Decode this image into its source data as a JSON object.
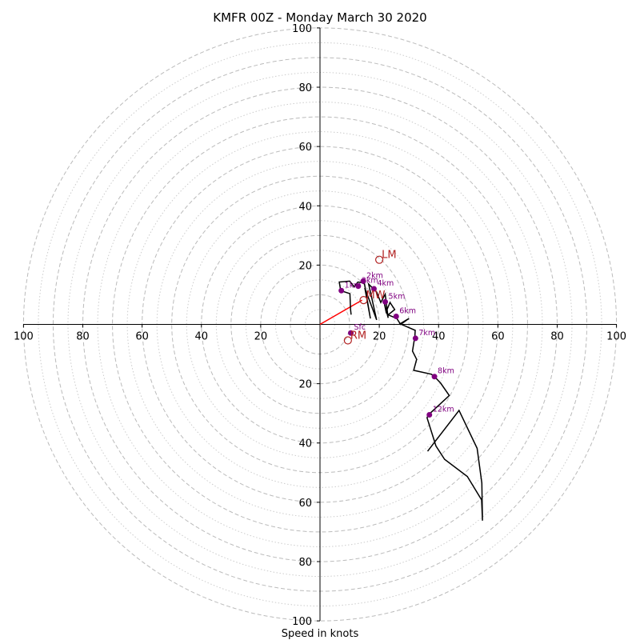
{
  "chart_data": {
    "type": "hodograph",
    "title": "KMFR 00Z - Monday March 30 2020",
    "xlabel": "Speed in knots",
    "units": "knots",
    "range": [
      -100,
      100
    ],
    "ring_radii_major": [
      10,
      20,
      30,
      40,
      50,
      60,
      70,
      80,
      90,
      100
    ],
    "ring_radii_minor": [
      5,
      15,
      25,
      35,
      45,
      55,
      65,
      75,
      85,
      95
    ],
    "tick_values": [
      20,
      40,
      60,
      80,
      100
    ],
    "x_tick_labels": [
      "100",
      "80",
      "60",
      "40",
      "20",
      "20",
      "40",
      "60",
      "80",
      "100"
    ],
    "y_tick_labels": [
      "100",
      "80",
      "60",
      "40",
      "20",
      "20",
      "40",
      "60",
      "80",
      "100"
    ],
    "grid": true,
    "colors": {
      "hodograph_line": "#000000",
      "height_markers": "#800080",
      "storm_motion": "#b22222",
      "shear_vector": "#ff0000",
      "grid_major": "#bbbbbb",
      "grid_minor": "#cccccc"
    },
    "hodograph": [
      {
        "u": 10.5,
        "v": 3.3
      },
      {
        "u": 10.3,
        "v": 5.0
      },
      {
        "u": 10.1,
        "v": 10.4
      },
      {
        "u": 7.0,
        "v": 11.4
      },
      {
        "u": 6.5,
        "v": 14.3
      },
      {
        "u": 10.0,
        "v": 14.6
      },
      {
        "u": 11.5,
        "v": 12.7
      },
      {
        "u": 12.8,
        "v": 14.3
      },
      {
        "u": 14.0,
        "v": 14.1
      },
      {
        "u": 15.0,
        "v": 13.7
      },
      {
        "u": 17.0,
        "v": 2.0
      },
      {
        "u": 15.1,
        "v": 12.3
      },
      {
        "u": 19.1,
        "v": 1.5
      },
      {
        "u": 16.4,
        "v": 13.6
      },
      {
        "u": 19.1,
        "v": 10.9
      },
      {
        "u": 20.5,
        "v": 7.4
      },
      {
        "u": 22.0,
        "v": 10.2
      },
      {
        "u": 23.0,
        "v": 2.2
      },
      {
        "u": 21.6,
        "v": 7.7
      },
      {
        "u": 22.3,
        "v": 4.2
      },
      {
        "u": 23.6,
        "v": 7.4
      },
      {
        "u": 25.2,
        "v": 5.0
      },
      {
        "u": 23.0,
        "v": 3.2
      },
      {
        "u": 25.9,
        "v": 2.0
      },
      {
        "u": 27.2,
        "v": 0.0
      },
      {
        "u": 30.0,
        "v": 2.0
      },
      {
        "u": 27.0,
        "v": 0.2
      },
      {
        "u": 32.1,
        "v": -2.0
      },
      {
        "u": 32.0,
        "v": -4.0
      },
      {
        "u": 31.2,
        "v": -9.0
      },
      {
        "u": 32.6,
        "v": -11.8
      },
      {
        "u": 31.6,
        "v": -15.5
      },
      {
        "u": 37.6,
        "v": -16.8
      },
      {
        "u": 38.5,
        "v": -17.5
      },
      {
        "u": 40.7,
        "v": -19.8
      },
      {
        "u": 43.6,
        "v": -24.0
      },
      {
        "u": 36.6,
        "v": -30.5
      },
      {
        "u": 36.1,
        "v": -31.5
      },
      {
        "u": 39.1,
        "v": -41.0
      },
      {
        "u": 42.0,
        "v": -45.5
      },
      {
        "u": 49.7,
        "v": -51.3
      },
      {
        "u": 54.5,
        "v": -59.2
      },
      {
        "u": 54.8,
        "v": -66.2
      },
      {
        "u": 54.6,
        "v": -53.5
      },
      {
        "u": 53.0,
        "v": -41.8
      },
      {
        "u": 46.9,
        "v": -29.0
      },
      {
        "u": 36.3,
        "v": -42.8
      }
    ],
    "height_markers": [
      {
        "label": "Sfc",
        "u": 10.4,
        "v": -2.9
      },
      {
        "label": "1km",
        "u": 7.2,
        "v": 11.4
      },
      {
        "label": "2km",
        "u": 14.6,
        "v": 14.6
      },
      {
        "label": "3km",
        "u": 12.9,
        "v": 12.9
      },
      {
        "label": "4km",
        "u": 18.2,
        "v": 12.0
      },
      {
        "label": "5km",
        "u": 22.0,
        "v": 7.6
      },
      {
        "label": "6km",
        "u": 25.7,
        "v": 2.7
      },
      {
        "label": "7km",
        "u": 32.2,
        "v": -4.7
      },
      {
        "label": "8km",
        "u": 38.6,
        "v": -17.6
      },
      {
        "label": "12km",
        "u": 36.9,
        "v": -30.5
      }
    ],
    "storm_motion": [
      {
        "label": "LM",
        "u": 20.0,
        "v": 21.8
      },
      {
        "label": "RM",
        "u": 9.4,
        "v": -5.4
      },
      {
        "label": "MW",
        "u": 14.7,
        "v": 8.2
      }
    ],
    "shear_vector": {
      "from": {
        "u": 0.0,
        "v": 0.0
      },
      "to": {
        "u": 14.2,
        "v": 8.2
      }
    }
  }
}
